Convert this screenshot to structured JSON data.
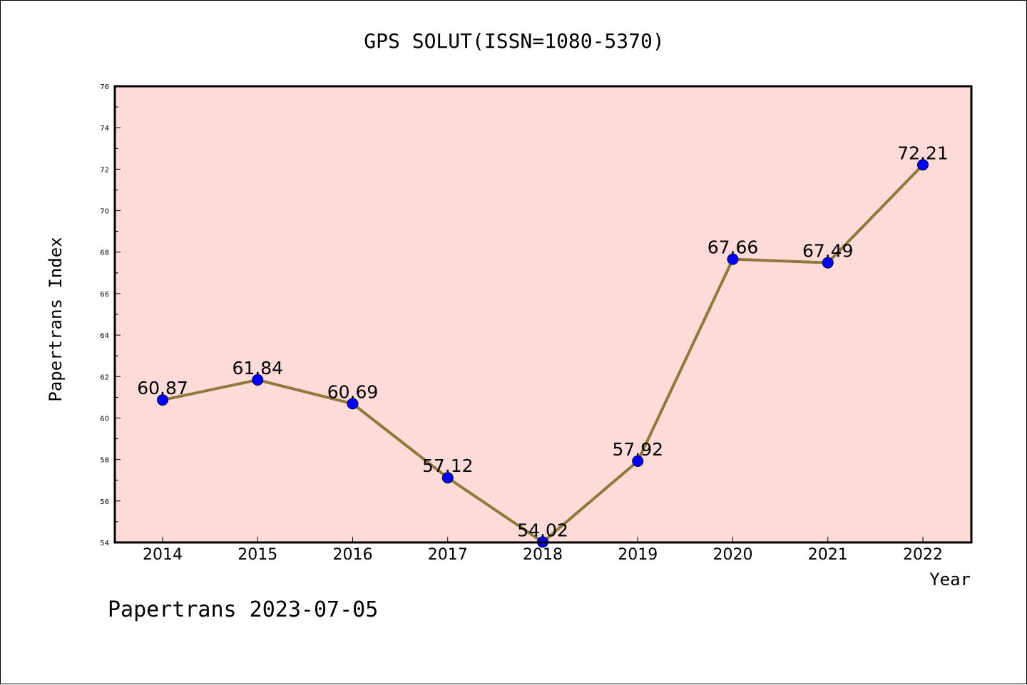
{
  "chart_data": {
    "type": "line",
    "title": "GPS SOLUT(ISSN=1080-5370)",
    "xlabel": "Year",
    "ylabel": "Papertrans Index",
    "categories": [
      "2014",
      "2015",
      "2016",
      "2017",
      "2018",
      "2019",
      "2020",
      "2021",
      "2022"
    ],
    "series": [
      {
        "values": [
          60.87,
          61.84,
          60.69,
          57.12,
          54.02,
          57.92,
          67.66,
          67.49,
          72.21
        ],
        "data_labels": [
          "60.87",
          "61.84",
          "60.69",
          "57.12",
          "54.02",
          "57.92",
          "67.66",
          "67.49",
          "72.21"
        ]
      }
    ],
    "ylim": [
      54,
      76
    ],
    "yticks": [
      "54",
      "56",
      "58",
      "60",
      "62",
      "64",
      "66",
      "68",
      "70",
      "72",
      "74",
      "76"
    ],
    "grid": false,
    "colors": {
      "plot_background": "#fddbd8",
      "line": "#8f7a3c",
      "marker": "#0000ff"
    }
  },
  "footer": "Papertrans 2023-07-05"
}
